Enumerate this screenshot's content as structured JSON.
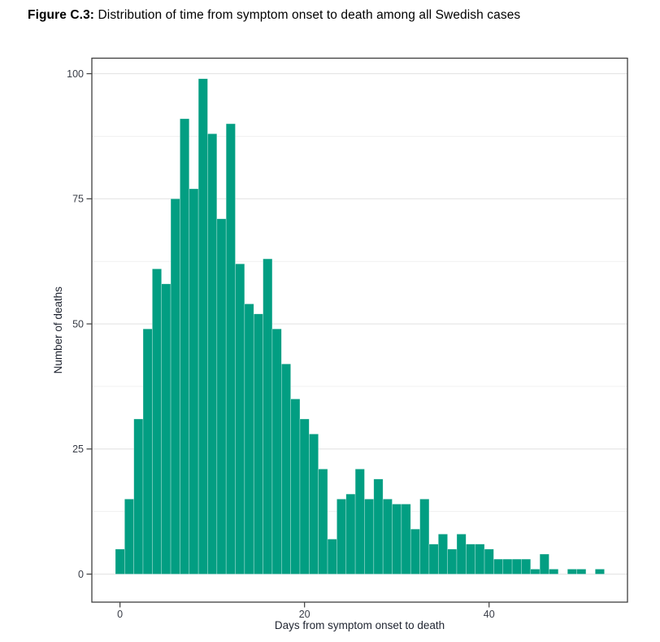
{
  "figure": {
    "label": "Figure C.3:",
    "caption": "Distribution of time from symptom onset to death among all Swedish cases"
  },
  "chart_data": {
    "type": "bar",
    "subtype": "histogram",
    "title": "",
    "xlabel": "Days from symptom onset to death",
    "ylabel": "Number of deaths",
    "bin_width_days": 1,
    "x": [
      0,
      1,
      2,
      3,
      4,
      5,
      6,
      7,
      8,
      9,
      10,
      11,
      12,
      13,
      14,
      15,
      16,
      17,
      18,
      19,
      20,
      21,
      22,
      23,
      24,
      25,
      26,
      27,
      28,
      29,
      30,
      31,
      32,
      33,
      34,
      35,
      36,
      37,
      38,
      39,
      40,
      41,
      42,
      43,
      44,
      45,
      46,
      47,
      48,
      49,
      50,
      51,
      52
    ],
    "values": [
      5,
      15,
      31,
      49,
      61,
      58,
      75,
      91,
      77,
      99,
      88,
      71,
      90,
      62,
      54,
      52,
      63,
      49,
      42,
      35,
      31,
      28,
      21,
      7,
      15,
      16,
      21,
      15,
      19,
      15,
      14,
      14,
      9,
      15,
      6,
      8,
      5,
      8,
      6,
      6,
      5,
      3,
      3,
      3,
      3,
      1,
      4,
      1,
      0,
      1,
      1,
      0,
      1
    ],
    "x_ticks": [
      0,
      20,
      40
    ],
    "y_ticks": [
      0,
      25,
      50,
      75,
      100
    ],
    "y_minor_gridlines": [
      12.5,
      37.5,
      62.5,
      87.5
    ],
    "xlim": [
      -3.05,
      55.0
    ],
    "ylim": [
      -5.6,
      103.1
    ],
    "grid": "major+minor",
    "legend": "none",
    "bar_color": "#029E82",
    "bar_edge_color": "rgba(255,255,255,0.5)",
    "major_grid_color": "#e4e4e4",
    "minor_grid_color": "#f1f1f1",
    "panel_border_color": "#3f3f3f",
    "tick_text_color": "#383c46",
    "axis_title_color": "#1f2430"
  }
}
